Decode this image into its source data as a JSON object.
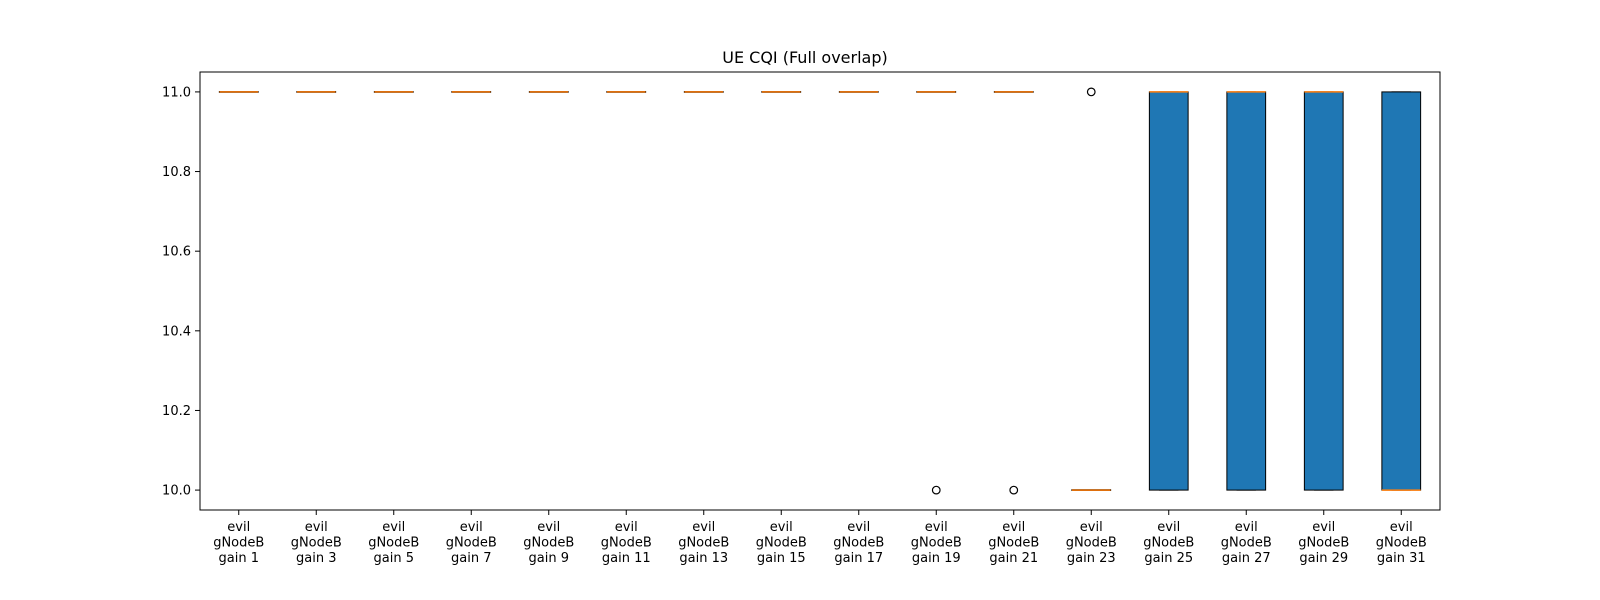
{
  "chart_data": {
    "type": "boxplot",
    "title": "UE CQI (Full overlap)",
    "xlabel": "",
    "ylabel": "",
    "ylim": [
      9.95,
      11.05
    ],
    "yticks": [
      "10.0",
      "10.2",
      "10.4",
      "10.6",
      "10.8",
      "11.0"
    ],
    "grid": false,
    "legend": "none",
    "colors": {
      "box_fill": "#1f77b4",
      "median": "#ff7f0e",
      "edge": "#000000"
    },
    "categories": [
      [
        "evil",
        "gNodeB",
        "gain 1"
      ],
      [
        "evil",
        "gNodeB",
        "gain 3"
      ],
      [
        "evil",
        "gNodeB",
        "gain 5"
      ],
      [
        "evil",
        "gNodeB",
        "gain 7"
      ],
      [
        "evil",
        "gNodeB",
        "gain 9"
      ],
      [
        "evil",
        "gNodeB",
        "gain 11"
      ],
      [
        "evil",
        "gNodeB",
        "gain 13"
      ],
      [
        "evil",
        "gNodeB",
        "gain 15"
      ],
      [
        "evil",
        "gNodeB",
        "gain 17"
      ],
      [
        "evil",
        "gNodeB",
        "gain 19"
      ],
      [
        "evil",
        "gNodeB",
        "gain 21"
      ],
      [
        "evil",
        "gNodeB",
        "gain 23"
      ],
      [
        "evil",
        "gNodeB",
        "gain 25"
      ],
      [
        "evil",
        "gNodeB",
        "gain 27"
      ],
      [
        "evil",
        "gNodeB",
        "gain 29"
      ],
      [
        "evil",
        "gNodeB",
        "gain 31"
      ]
    ],
    "boxes": [
      {
        "whislo": 11.0,
        "q1": 11.0,
        "med": 11.0,
        "q3": 11.0,
        "whishi": 11.0,
        "fliers": []
      },
      {
        "whislo": 11.0,
        "q1": 11.0,
        "med": 11.0,
        "q3": 11.0,
        "whishi": 11.0,
        "fliers": []
      },
      {
        "whislo": 11.0,
        "q1": 11.0,
        "med": 11.0,
        "q3": 11.0,
        "whishi": 11.0,
        "fliers": []
      },
      {
        "whislo": 11.0,
        "q1": 11.0,
        "med": 11.0,
        "q3": 11.0,
        "whishi": 11.0,
        "fliers": []
      },
      {
        "whislo": 11.0,
        "q1": 11.0,
        "med": 11.0,
        "q3": 11.0,
        "whishi": 11.0,
        "fliers": []
      },
      {
        "whislo": 11.0,
        "q1": 11.0,
        "med": 11.0,
        "q3": 11.0,
        "whishi": 11.0,
        "fliers": []
      },
      {
        "whislo": 11.0,
        "q1": 11.0,
        "med": 11.0,
        "q3": 11.0,
        "whishi": 11.0,
        "fliers": []
      },
      {
        "whislo": 11.0,
        "q1": 11.0,
        "med": 11.0,
        "q3": 11.0,
        "whishi": 11.0,
        "fliers": []
      },
      {
        "whislo": 11.0,
        "q1": 11.0,
        "med": 11.0,
        "q3": 11.0,
        "whishi": 11.0,
        "fliers": []
      },
      {
        "whislo": 11.0,
        "q1": 11.0,
        "med": 11.0,
        "q3": 11.0,
        "whishi": 11.0,
        "fliers": [
          10.0
        ]
      },
      {
        "whislo": 11.0,
        "q1": 11.0,
        "med": 11.0,
        "q3": 11.0,
        "whishi": 11.0,
        "fliers": [
          10.0
        ]
      },
      {
        "whislo": 10.0,
        "q1": 10.0,
        "med": 10.0,
        "q3": 10.0,
        "whishi": 10.0,
        "fliers": [
          11.0
        ]
      },
      {
        "whislo": 10.0,
        "q1": 10.0,
        "med": 11.0,
        "q3": 11.0,
        "whishi": 11.0,
        "fliers": []
      },
      {
        "whislo": 10.0,
        "q1": 10.0,
        "med": 11.0,
        "q3": 11.0,
        "whishi": 11.0,
        "fliers": []
      },
      {
        "whislo": 10.0,
        "q1": 10.0,
        "med": 11.0,
        "q3": 11.0,
        "whishi": 11.0,
        "fliers": []
      },
      {
        "whislo": 10.0,
        "q1": 10.0,
        "med": 10.0,
        "q3": 11.0,
        "whishi": 11.0,
        "fliers": []
      }
    ]
  }
}
